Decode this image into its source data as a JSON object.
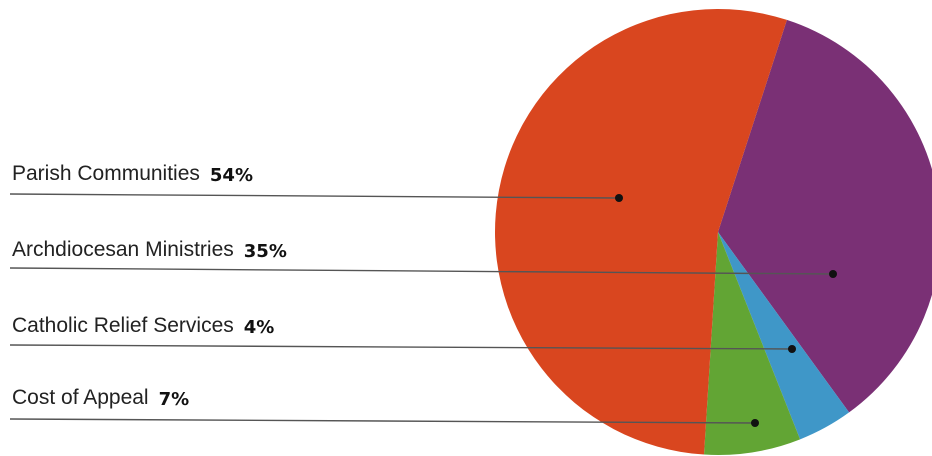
{
  "chart_data": {
    "type": "pie",
    "title": "",
    "legend": "left",
    "slices": [
      {
        "label": "Parish Communities",
        "pct_text": "54%",
        "value": 54,
        "color": "#d9461f"
      },
      {
        "label": "Archdiocesan Ministries",
        "pct_text": "35%",
        "value": 35,
        "color": "#7a3075"
      },
      {
        "label": "Catholic Relief Services",
        "pct_text": "4%",
        "value": 4,
        "color": "#3f97c8"
      },
      {
        "label": "Cost of Appeal",
        "pct_text": "7%",
        "value": 7,
        "color": "#62a534"
      }
    ]
  }
}
